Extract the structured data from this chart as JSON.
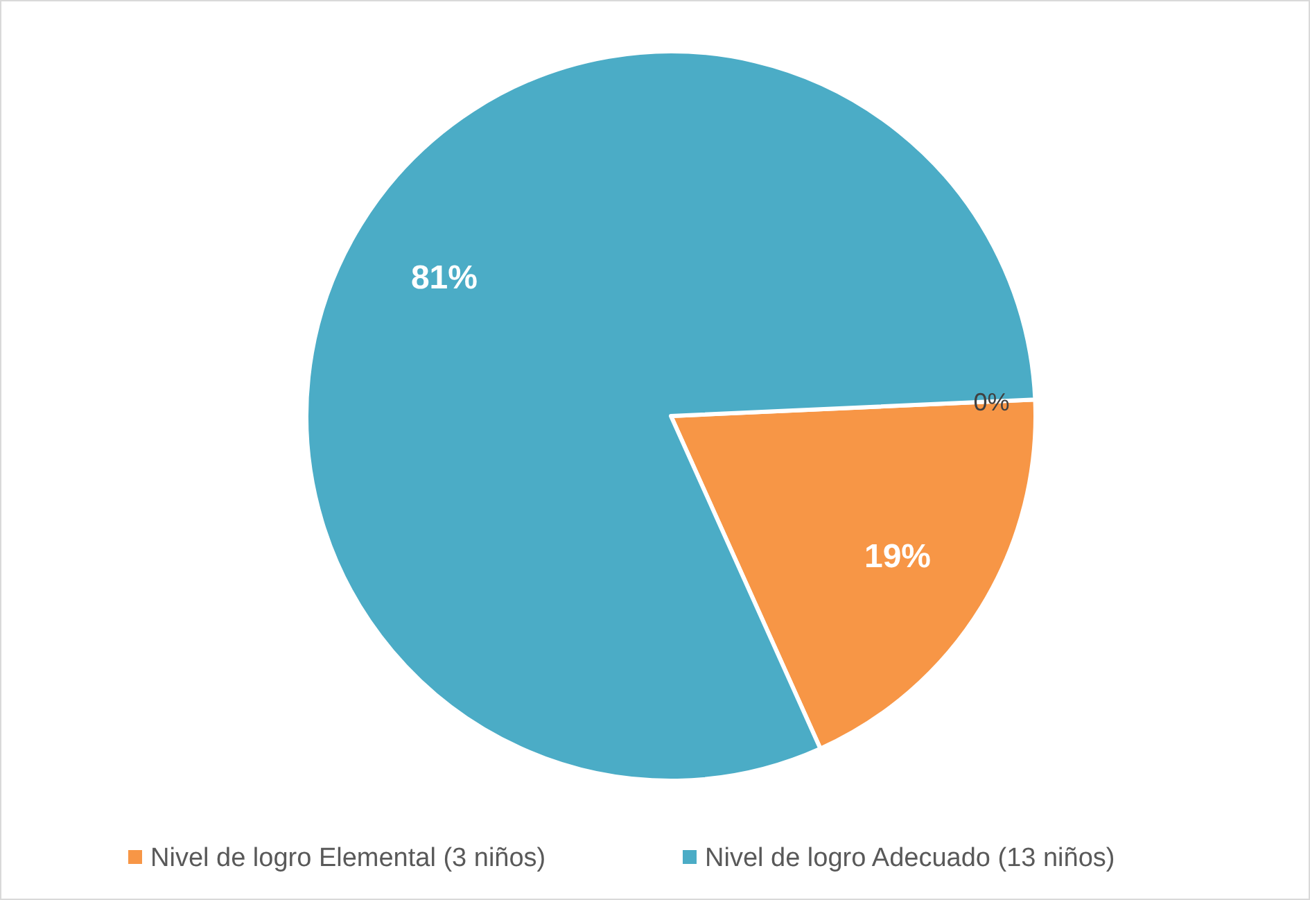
{
  "chart_data": {
    "type": "pie",
    "categories": [
      null,
      "Nivel de logro Elemental (3 niños)",
      "Nivel de logro Adecuado (13 niños)"
    ],
    "values": [
      0,
      19,
      81
    ],
    "colors": [
      "#9bbb59",
      "#f79646",
      "#4bacc6"
    ],
    "value_labels": [
      "0%",
      "19%",
      "81%"
    ],
    "legend": "bottom"
  }
}
